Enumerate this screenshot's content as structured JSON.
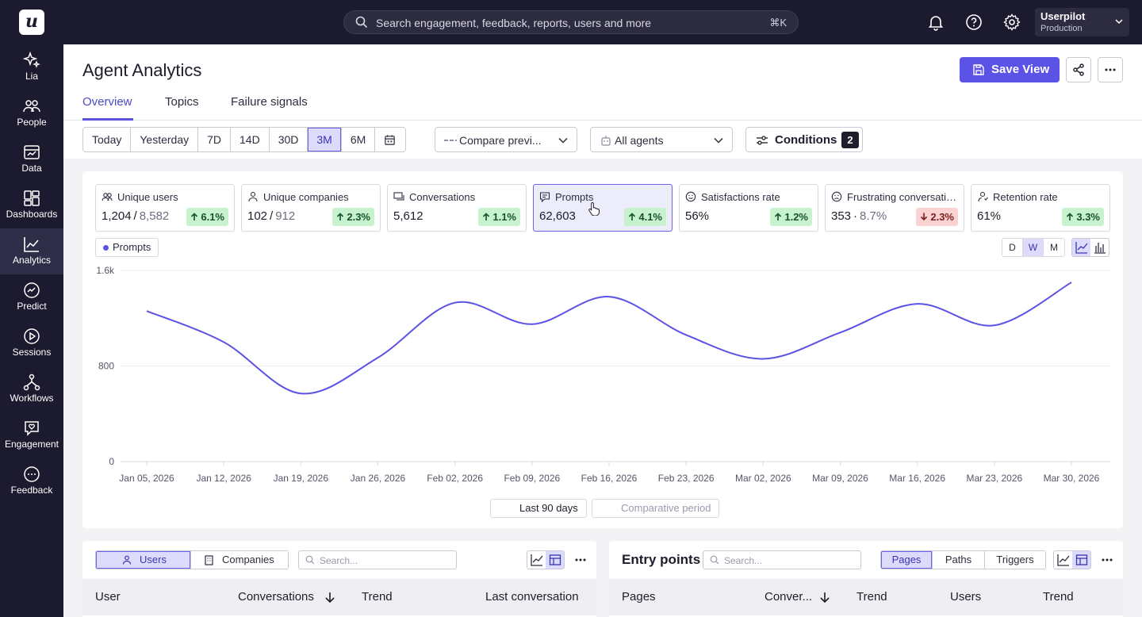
{
  "app": {
    "logo": "u"
  },
  "search": {
    "placeholder": "Search engagement, feedback, reports, users and more",
    "shortcut": "⌘K"
  },
  "account": {
    "name": "Userpilot",
    "env": "Production"
  },
  "sidebar": {
    "items": [
      {
        "label": "Lia",
        "icon": "sparkle-icon"
      },
      {
        "label": "People",
        "icon": "people-icon"
      },
      {
        "label": "Data",
        "icon": "data-icon"
      },
      {
        "label": "Dashboards",
        "icon": "dashboards-icon"
      },
      {
        "label": "Analytics",
        "icon": "analytics-icon",
        "active": true
      },
      {
        "label": "Predict",
        "icon": "predict-icon"
      },
      {
        "label": "Sessions",
        "icon": "sessions-icon"
      },
      {
        "label": "Workflows",
        "icon": "workflows-icon"
      },
      {
        "label": "Engagement",
        "icon": "engagement-icon"
      },
      {
        "label": "Feedback",
        "icon": "feedback-icon"
      }
    ]
  },
  "page": {
    "title": "Agent Analytics",
    "tabs": [
      "Overview",
      "Topics",
      "Failure signals"
    ],
    "active_tab": "Overview",
    "save_label": "Save View"
  },
  "filters": {
    "ranges": [
      "Today",
      "Yesterday",
      "7D",
      "14D",
      "30D",
      "3M",
      "6M"
    ],
    "active_range": "3M",
    "compare": "Compare previ...",
    "agents": "All agents",
    "conditions_label": "Conditions",
    "conditions_count": "2"
  },
  "metrics": [
    {
      "label": "Unique users",
      "value": "1,204",
      "sep": "/",
      "sub": "8,582",
      "delta": "6.1%",
      "dir": "up",
      "icon": "users-icon"
    },
    {
      "label": "Unique companies",
      "value": "102",
      "sep": "/",
      "sub": "912",
      "delta": "2.3%",
      "dir": "up",
      "icon": "person-icon"
    },
    {
      "label": "Conversations",
      "value": "5,612",
      "sep": "",
      "sub": "",
      "delta": "1.1%",
      "dir": "up",
      "icon": "conversations-icon"
    },
    {
      "label": "Prompts",
      "value": "62,603",
      "sep": "",
      "sub": "",
      "delta": "4.1%",
      "dir": "up",
      "icon": "prompts-icon",
      "selected": true
    },
    {
      "label": "Satisfactions rate",
      "value": "56%",
      "sep": "",
      "sub": "",
      "delta": "1.2%",
      "dir": "up",
      "icon": "smile-icon"
    },
    {
      "label": "Frustrating conversatio...",
      "value": "353",
      "sep": "·",
      "sub": "8.7%",
      "delta": "2.3%",
      "dir": "down",
      "icon": "frown-icon"
    },
    {
      "label": "Retention rate",
      "value": "61%",
      "sep": "",
      "sub": "",
      "delta": "3.3%",
      "dir": "up",
      "icon": "retention-icon"
    }
  ],
  "granularity": {
    "options": [
      "D",
      "W",
      "M"
    ],
    "active": "W"
  },
  "chart_data": {
    "type": "line",
    "series": [
      {
        "name": "Prompts",
        "color": "#5b52e6",
        "values": [
          1260,
          1000,
          570,
          870,
          1330,
          1150,
          1380,
          1060,
          860,
          1080,
          1320,
          1140,
          1500
        ]
      }
    ],
    "x": [
      "Jan 05, 2026",
      "Jan 12, 2026",
      "Jan 19, 2026",
      "Jan 26, 2026",
      "Feb 02, 2026",
      "Feb 09, 2026",
      "Feb 16, 2026",
      "Feb 23, 2026",
      "Mar 02, 2026",
      "Mar 09, 2026",
      "Mar 16, 2026",
      "Mar 23, 2026",
      "Mar 30, 2026"
    ],
    "yticks": [
      "1.6k",
      "800",
      "0"
    ],
    "ylim": [
      0,
      1600
    ],
    "grid": true,
    "legend": [
      {
        "label": "Last 90 days",
        "style": "solid"
      },
      {
        "label": "Comparative period",
        "style": "dashed"
      }
    ]
  },
  "users_panel": {
    "toggle": [
      "Users",
      "Companies"
    ],
    "search_placeholder": "Search...",
    "columns": [
      "User",
      "Conversations",
      "Trend",
      "Last conversation"
    ]
  },
  "entry_panel": {
    "title": "Entry points",
    "search_placeholder": "Search...",
    "toggle": [
      "Pages",
      "Paths",
      "Triggers"
    ],
    "columns": [
      "Pages",
      "Conver...",
      "Trend",
      "Users",
      "Trend"
    ]
  }
}
